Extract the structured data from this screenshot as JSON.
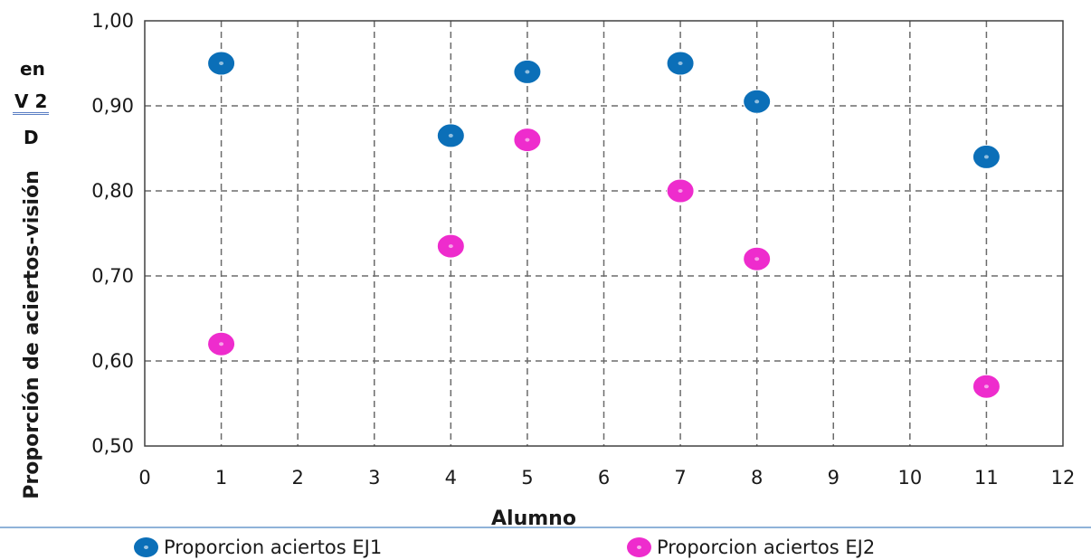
{
  "side_notes": {
    "line1": "en",
    "line2": "V 2",
    "line3": "D"
  },
  "chart_data": {
    "type": "scatter",
    "title": "",
    "xlabel": "Alumno",
    "ylabel": "Proporción de aciertos-visión",
    "xlim": [
      0,
      12
    ],
    "ylim": [
      0.5,
      1.0
    ],
    "x_ticks": [
      "0",
      "1",
      "2",
      "3",
      "4",
      "5",
      "6",
      "7",
      "8",
      "9",
      "10",
      "11",
      "12"
    ],
    "y_ticks": [
      "0,50",
      "0,60",
      "0,70",
      "0,80",
      "0,90",
      "1,00"
    ],
    "grid": true,
    "legend_position": "bottom",
    "series": [
      {
        "name": "Proporcion aciertos EJ1",
        "color": "#0b6fb8",
        "x": [
          1,
          4,
          5,
          7,
          8,
          11
        ],
        "y": [
          0.95,
          0.865,
          0.94,
          0.95,
          0.905,
          0.84
        ]
      },
      {
        "name": "Proporcion aciertos EJ2",
        "color": "#ee2ccd",
        "x": [
          1,
          4,
          5,
          7,
          8,
          11
        ],
        "y": [
          0.62,
          0.735,
          0.86,
          0.8,
          0.72,
          0.57
        ]
      }
    ]
  }
}
